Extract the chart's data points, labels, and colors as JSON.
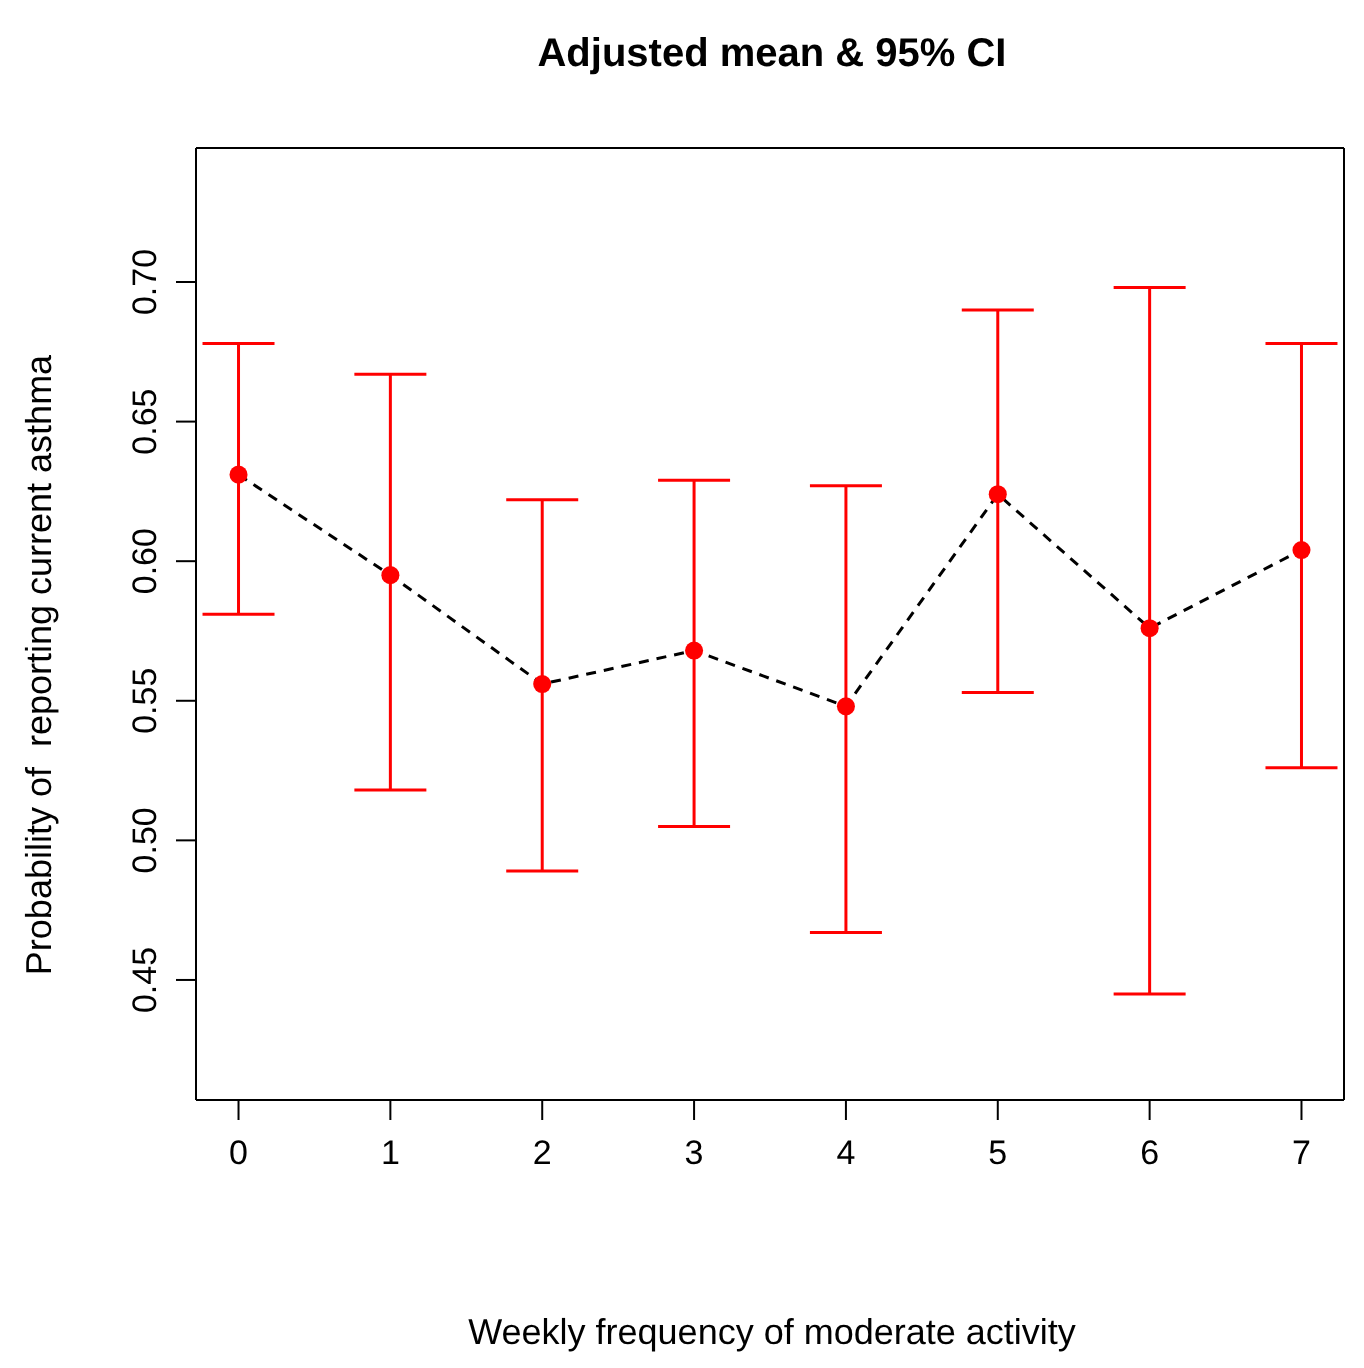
{
  "chart_data": {
    "type": "scatter",
    "title": "Adjusted mean & 95% CI",
    "xlabel": "Weekly frequency of moderate activity",
    "ylabel": "Probability of  reporting current asthma",
    "x": [
      0,
      1,
      2,
      3,
      4,
      5,
      6,
      7
    ],
    "series": [
      {
        "type": "line",
        "color": "#000000",
        "line_style": "dashed",
        "marker": "none",
        "values": [
          0.631,
          0.595,
          0.556,
          0.568,
          0.548,
          0.624,
          0.576,
          0.604
        ]
      },
      {
        "type": "scatter",
        "color": "#ff0000",
        "marker": "circle",
        "values": [
          0.631,
          0.595,
          0.556,
          0.568,
          0.548,
          0.624,
          0.576,
          0.604
        ],
        "errors": [
          [
            0.581,
            0.678
          ],
          [
            0.518,
            0.667
          ],
          [
            0.489,
            0.622
          ],
          [
            0.505,
            0.629
          ],
          [
            0.467,
            0.627
          ],
          [
            0.553,
            0.69
          ],
          [
            0.445,
            0.698
          ],
          [
            0.526,
            0.678
          ]
        ]
      }
    ],
    "xlim": [
      -0.28,
      7.28
    ],
    "xticks": [
      0,
      1,
      2,
      3,
      4,
      5,
      6,
      7
    ],
    "ylim": [
      0.407,
      0.748
    ],
    "yticks": [
      0.45,
      {
        "value": 0.5,
        "label": "0.50"
      },
      0.55,
      {
        "value": 0.6,
        "label": "0.60"
      },
      0.65,
      {
        "value": 0.7,
        "label": "0.70"
      }
    ],
    "grid": false
  }
}
